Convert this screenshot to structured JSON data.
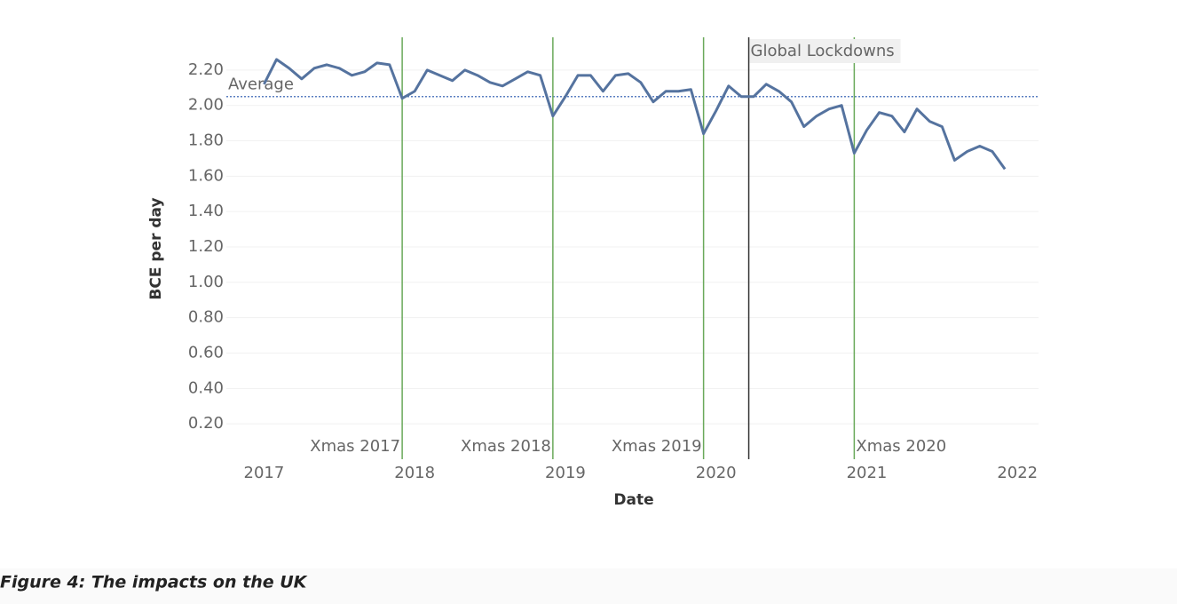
{
  "chart_data": {
    "type": "line",
    "y_label": "BCE per day",
    "x_label": "Date",
    "caption": "Figure 4: The impacts on the UK",
    "x": [
      2017,
      2017.083,
      2017.167,
      2017.25,
      2017.333,
      2017.417,
      2017.5,
      2017.583,
      2017.667,
      2017.75,
      2017.833,
      2017.917,
      2018,
      2018.083,
      2018.167,
      2018.25,
      2018.333,
      2018.417,
      2018.5,
      2018.583,
      2018.667,
      2018.75,
      2018.833,
      2018.917,
      2019,
      2019.083,
      2019.167,
      2019.25,
      2019.333,
      2019.417,
      2019.5,
      2019.583,
      2019.667,
      2019.75,
      2019.833,
      2019.917,
      2020,
      2020.083,
      2020.167,
      2020.25,
      2020.333,
      2020.417,
      2020.5,
      2020.583,
      2020.667,
      2020.75,
      2020.833,
      2020.917,
      2021,
      2021.083,
      2021.167,
      2021.25,
      2021.333,
      2021.417,
      2021.5,
      2021.583,
      2021.667,
      2021.75,
      2021.833,
      2021.917
    ],
    "series": [
      {
        "name": "BCE per day",
        "color": "#55739f",
        "values": [
          2.12,
          2.26,
          2.21,
          2.15,
          2.21,
          2.23,
          2.21,
          2.17,
          2.19,
          2.24,
          2.23,
          2.04,
          2.08,
          2.2,
          2.17,
          2.14,
          2.2,
          2.17,
          2.13,
          2.11,
          2.15,
          2.19,
          2.17,
          1.94,
          2.05,
          2.17,
          2.17,
          2.08,
          2.17,
          2.18,
          2.13,
          2.02,
          2.08,
          2.08,
          2.09,
          1.84,
          1.97,
          2.11,
          2.05,
          2.05,
          2.12,
          2.08,
          2.02,
          1.88,
          1.94,
          1.98,
          2.0,
          1.73,
          1.86,
          1.96,
          1.94,
          1.85,
          1.98,
          1.91,
          1.88,
          1.69,
          1.74,
          1.77,
          1.74,
          1.64
        ]
      }
    ],
    "average": {
      "label": "Average",
      "value": 2.05,
      "color": "#5b7fc2"
    },
    "events": [
      {
        "label": "Xmas 2017",
        "x": 2017.917
      },
      {
        "label": "Xmas 2018",
        "x": 2018.917
      },
      {
        "label": "Xmas 2019",
        "x": 2019.917
      },
      {
        "label": "Xmas 2020",
        "x": 2020.917
      }
    ],
    "event_color": "#6aa95a",
    "lockdown": {
      "label": "Global Lockdowns",
      "x": 2020.217,
      "color": "#333333"
    },
    "xlim": [
      2016.75,
      2022.14
    ],
    "xticks": [
      2017,
      2018,
      2019,
      2020,
      2021,
      2022
    ],
    "ylim": [
      0,
      2.37
    ],
    "yticks": [
      {
        "value": 0.2,
        "label": "0.20"
      },
      {
        "value": 0.4,
        "label": "0.40"
      },
      {
        "value": 0.6,
        "label": "0.60"
      },
      {
        "value": 0.8,
        "label": "0.80"
      },
      {
        "value": 1.0,
        "label": "1.00"
      },
      {
        "value": 1.2,
        "label": "1.20"
      },
      {
        "value": 1.4,
        "label": "1.40"
      },
      {
        "value": 1.6,
        "label": "1.60"
      },
      {
        "value": 1.8,
        "label": "1.80"
      },
      {
        "value": 2.0,
        "label": "2.00"
      },
      {
        "value": 2.2,
        "label": "2.20"
      }
    ],
    "grid": true
  }
}
